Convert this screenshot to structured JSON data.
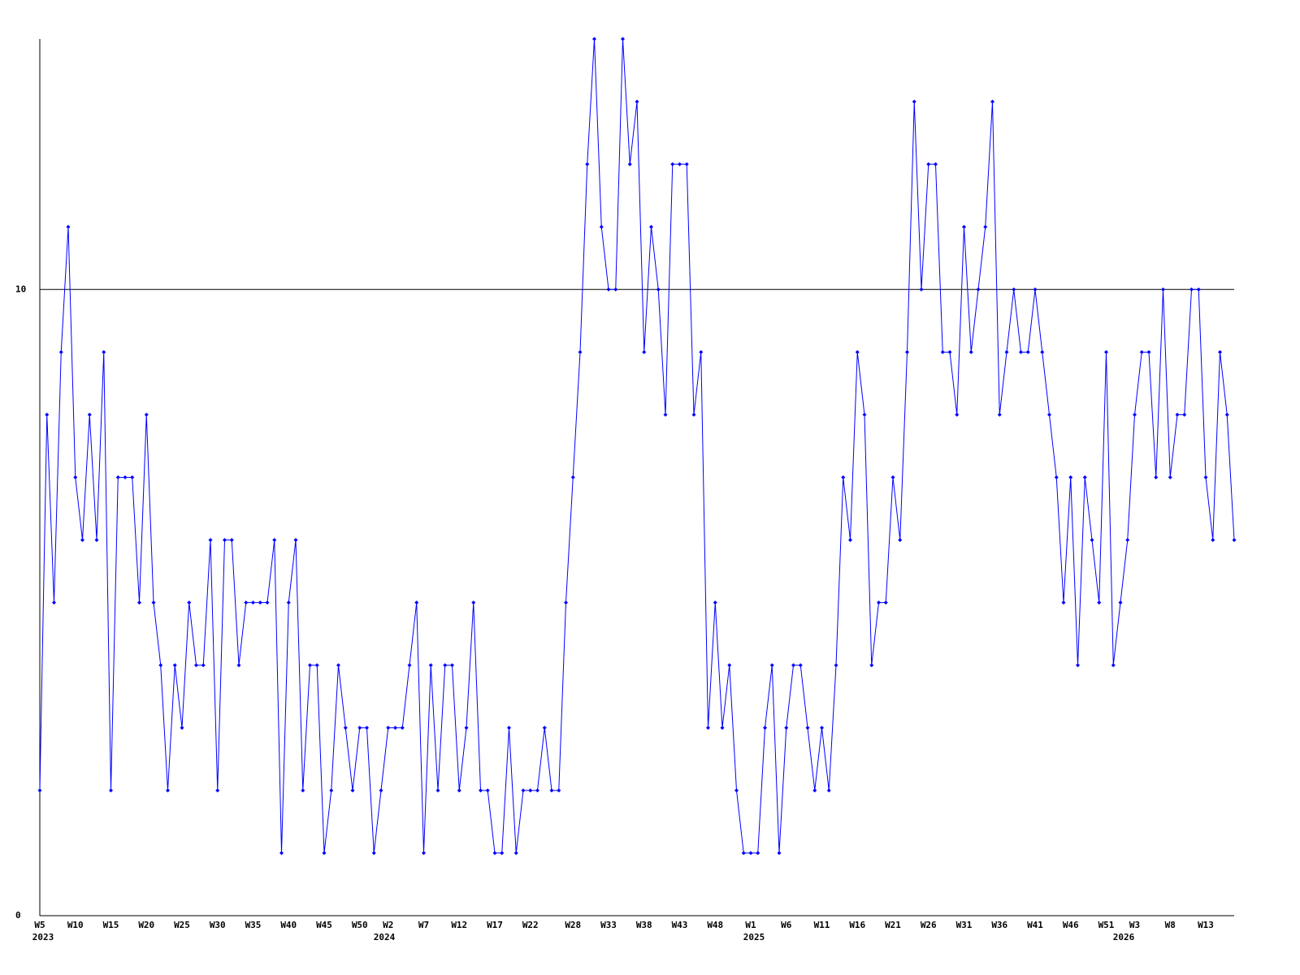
{
  "chart_data": {
    "type": "line",
    "categories": [
      "W5",
      null,
      null,
      null,
      null,
      "W10",
      null,
      null,
      null,
      null,
      "W15",
      null,
      null,
      null,
      null,
      "W20",
      null,
      null,
      null,
      null,
      "W25",
      null,
      null,
      null,
      null,
      "W30",
      null,
      null,
      null,
      null,
      "W35",
      null,
      null,
      null,
      null,
      "W40",
      null,
      null,
      null,
      null,
      "W45",
      null,
      null,
      null,
      null,
      "W50",
      null,
      null,
      null,
      "W2",
      null,
      null,
      null,
      null,
      "W7",
      null,
      null,
      null,
      null,
      "W12",
      null,
      null,
      null,
      null,
      "W17",
      null,
      null,
      null,
      null,
      "W22",
      null,
      null,
      null,
      null,
      null,
      "W28",
      null,
      null,
      null,
      null,
      "W33",
      null,
      null,
      null,
      null,
      "W38",
      null,
      null,
      null,
      null,
      "W43",
      null,
      null,
      null,
      null,
      "W48",
      null,
      null,
      null,
      null,
      "W1",
      null,
      null,
      null,
      null,
      "W6",
      null,
      null,
      null,
      null,
      "W11",
      null,
      null,
      null,
      null,
      "W16",
      null,
      null,
      null,
      null,
      "W21",
      null,
      null,
      null,
      null,
      "W26",
      null,
      null,
      null,
      null,
      "W31",
      null,
      null,
      null,
      null,
      "W36",
      null,
      null,
      null,
      null,
      "W41",
      null,
      null,
      null,
      null,
      "W46",
      null,
      null,
      null,
      null,
      "W51",
      null,
      null,
      null,
      "W3",
      null,
      null,
      null,
      null,
      "W8",
      null,
      null,
      null,
      null,
      "W13",
      null,
      null,
      null,
      null
    ],
    "x_year_labels": [
      "2023",
      null,
      null,
      null,
      null,
      null,
      null,
      null,
      null,
      null,
      null,
      null,
      null,
      null,
      null,
      null,
      null,
      null,
      null,
      null,
      null,
      null,
      null,
      null,
      null,
      null,
      null,
      null,
      null,
      null,
      null,
      null,
      null,
      null,
      null,
      null,
      null,
      null,
      null,
      null,
      null,
      null,
      null,
      null,
      null,
      null,
      null,
      null,
      "2024",
      null,
      null,
      null,
      null,
      null,
      null,
      null,
      null,
      null,
      null,
      null,
      null,
      null,
      null,
      null,
      null,
      null,
      null,
      null,
      null,
      null,
      null,
      null,
      null,
      null,
      null,
      null,
      null,
      null,
      null,
      null,
      null,
      null,
      null,
      null,
      null,
      null,
      null,
      null,
      null,
      null,
      null,
      null,
      null,
      null,
      null,
      null,
      null,
      null,
      null,
      null,
      "2025",
      null,
      null,
      null,
      null,
      null,
      null,
      null,
      null,
      null,
      null,
      null,
      null,
      null,
      null,
      null,
      null,
      null,
      null,
      null,
      null,
      null,
      null,
      null,
      null,
      null,
      null,
      null,
      null,
      null,
      null,
      null,
      null,
      null,
      null,
      null,
      null,
      null,
      null,
      null,
      null,
      null,
      null,
      null,
      null,
      null,
      null,
      null,
      null,
      null,
      null,
      null,
      "2026",
      null,
      null,
      null,
      null,
      null,
      null,
      null,
      null,
      null,
      null,
      null,
      null,
      null,
      null,
      null,
      null
    ],
    "series": [
      {
        "color": "#0000ff",
        "values": [
          2,
          8,
          5,
          9,
          11,
          7,
          6,
          8,
          6,
          9,
          2,
          7,
          7,
          7,
          5,
          8,
          5,
          4,
          2,
          4,
          3,
          5,
          4,
          4,
          6,
          2,
          6,
          6,
          4,
          5,
          5,
          5,
          5,
          6,
          1,
          5,
          6,
          2,
          4,
          4,
          1,
          2,
          4,
          3,
          2,
          3,
          3,
          1,
          2,
          3,
          3,
          3,
          4,
          5,
          1,
          4,
          2,
          4,
          4,
          2,
          3,
          5,
          2,
          2,
          1,
          1,
          3,
          1,
          2,
          2,
          2,
          3,
          2,
          2,
          5,
          7,
          9,
          12,
          14,
          11,
          10,
          10,
          14,
          12,
          13,
          9,
          11,
          10,
          8,
          12,
          12,
          12,
          8,
          9,
          3,
          5,
          3,
          4,
          2,
          1,
          1,
          1,
          3,
          4,
          1,
          3,
          4,
          4,
          3,
          2,
          3,
          2,
          4,
          7,
          6,
          9,
          8,
          4,
          5,
          5,
          7,
          6,
          9,
          13,
          10,
          12,
          12,
          9,
          9,
          8,
          11,
          9,
          10,
          11,
          13,
          8,
          9,
          10,
          9,
          9,
          10,
          9,
          8,
          7,
          5,
          7,
          4,
          7,
          6,
          5,
          9,
          4,
          5,
          6,
          8,
          9,
          9,
          7,
          10,
          7,
          8,
          8,
          10,
          10,
          7,
          6,
          9,
          8,
          6
        ]
      }
    ],
    "ylim": [
      0,
      14
    ],
    "yticks": [
      0,
      10
    ],
    "grid": true,
    "grid_color": "#000000"
  }
}
